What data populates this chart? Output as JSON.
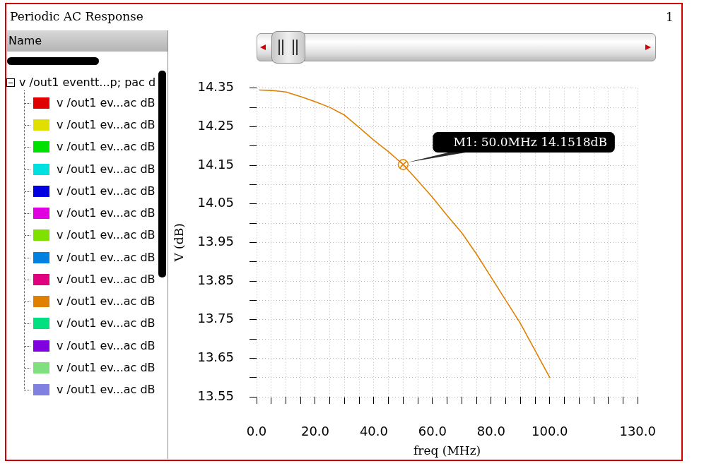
{
  "chart_data": {
    "type": "line",
    "title": "Periodic AC Response",
    "xlabel": "freq (MHz)",
    "ylabel": "V (dB)",
    "legend_title": "v /out1 eventt...p; pac d",
    "legend": "left",
    "grid": true,
    "annotations": [
      "Name",
      "1",
      {
        "text": "M1: 50.0MHz 14.1518dB",
        "x": 50,
        "y": 14.1518
      }
    ],
    "x": [
      1,
      5,
      10,
      15,
      20,
      25,
      30,
      35,
      40,
      45,
      50,
      55,
      60,
      65,
      70,
      75,
      80,
      85,
      90,
      95,
      100
    ],
    "series": [
      {
        "name": "v /out1 ev...ac dB",
        "color": "#e00000",
        "values": [
          null,
          null,
          null,
          null,
          null,
          null,
          null,
          null,
          null,
          null,
          null,
          null,
          null,
          null,
          null,
          null,
          null,
          null,
          null,
          null,
          null
        ]
      },
      {
        "name": "v /out1 ev...ac dB",
        "color": "#e0e000",
        "values": [
          null,
          null,
          null,
          null,
          null,
          null,
          null,
          null,
          null,
          null,
          null,
          null,
          null,
          null,
          null,
          null,
          null,
          null,
          null,
          null,
          null
        ]
      },
      {
        "name": "v /out1 ev...ac dB",
        "color": "#00e000",
        "values": [
          null,
          null,
          null,
          null,
          null,
          null,
          null,
          null,
          null,
          null,
          null,
          null,
          null,
          null,
          null,
          null,
          null,
          null,
          null,
          null,
          null
        ]
      },
      {
        "name": "v /out1 ev...ac dB",
        "color": "#00e0e0",
        "values": [
          null,
          null,
          null,
          null,
          null,
          null,
          null,
          null,
          null,
          null,
          null,
          null,
          null,
          null,
          null,
          null,
          null,
          null,
          null,
          null,
          null
        ]
      },
      {
        "name": "v /out1 ev...ac dB",
        "color": "#0000e0",
        "values": [
          null,
          null,
          null,
          null,
          null,
          null,
          null,
          null,
          null,
          null,
          null,
          null,
          null,
          null,
          null,
          null,
          null,
          null,
          null,
          null,
          null
        ]
      },
      {
        "name": "v /out1 ev...ac dB",
        "color": "#e000e0",
        "values": [
          null,
          null,
          null,
          null,
          null,
          null,
          null,
          null,
          null,
          null,
          null,
          null,
          null,
          null,
          null,
          null,
          null,
          null,
          null,
          null,
          null
        ]
      },
      {
        "name": "v /out1 ev...ac dB",
        "color": "#80e000",
        "values": [
          null,
          null,
          null,
          null,
          null,
          null,
          null,
          null,
          null,
          null,
          null,
          null,
          null,
          null,
          null,
          null,
          null,
          null,
          null,
          null,
          null
        ]
      },
      {
        "name": "v /out1 ev...ac dB",
        "color": "#0080e0",
        "values": [
          null,
          null,
          null,
          null,
          null,
          null,
          null,
          null,
          null,
          null,
          null,
          null,
          null,
          null,
          null,
          null,
          null,
          null,
          null,
          null,
          null
        ]
      },
      {
        "name": "v /out1 ev...ac dB",
        "color": "#e00080",
        "values": [
          null,
          null,
          null,
          null,
          null,
          null,
          null,
          null,
          null,
          null,
          null,
          null,
          null,
          null,
          null,
          null,
          null,
          null,
          null,
          null,
          null
        ]
      },
      {
        "name": "v /out1 ev...ac dB",
        "color": "#e08000",
        "values": [
          14.345,
          14.344,
          14.34,
          14.328,
          14.315,
          14.3,
          14.28,
          14.248,
          14.215,
          14.185,
          14.152,
          14.11,
          14.067,
          14.02,
          13.975,
          13.92,
          13.86,
          13.8,
          13.74,
          13.67,
          13.6
        ]
      },
      {
        "name": "v /out1 ev...ac dB",
        "color": "#00e080",
        "values": [
          null,
          null,
          null,
          null,
          null,
          null,
          null,
          null,
          null,
          null,
          null,
          null,
          null,
          null,
          null,
          null,
          null,
          null,
          null,
          null,
          null
        ]
      },
      {
        "name": "v /out1 ev...ac dB",
        "color": "#8000e0",
        "values": [
          null,
          null,
          null,
          null,
          null,
          null,
          null,
          null,
          null,
          null,
          null,
          null,
          null,
          null,
          null,
          null,
          null,
          null,
          null,
          null,
          null
        ]
      },
      {
        "name": "v /out1 ev...ac dB",
        "color": "#80e080",
        "values": [
          null,
          null,
          null,
          null,
          null,
          null,
          null,
          null,
          null,
          null,
          null,
          null,
          null,
          null,
          null,
          null,
          null,
          null,
          null,
          null,
          null
        ]
      },
      {
        "name": "v /out1 ev...ac dB",
        "color": "#8080e0",
        "values": [
          null,
          null,
          null,
          null,
          null,
          null,
          null,
          null,
          null,
          null,
          null,
          null,
          null,
          null,
          null,
          null,
          null,
          null,
          null,
          null,
          null
        ]
      }
    ],
    "xlim": [
      0,
      130
    ],
    "ylim": [
      13.55,
      14.35
    ],
    "xticks": [
      {
        "value": 0,
        "label": "0.0"
      },
      {
        "value": 5,
        "label": null
      },
      {
        "value": 10,
        "label": null
      },
      {
        "value": 15,
        "label": null
      },
      {
        "value": 20,
        "label": "20.0"
      },
      {
        "value": 25,
        "label": null
      },
      {
        "value": 30,
        "label": null
      },
      {
        "value": 35,
        "label": null
      },
      {
        "value": 40,
        "label": "40.0"
      },
      {
        "value": 45,
        "label": null
      },
      {
        "value": 50,
        "label": null
      },
      {
        "value": 55,
        "label": null
      },
      {
        "value": 60,
        "label": "60.0"
      },
      {
        "value": 65,
        "label": null
      },
      {
        "value": 70,
        "label": null
      },
      {
        "value": 75,
        "label": null
      },
      {
        "value": 80,
        "label": "80.0"
      },
      {
        "value": 85,
        "label": null
      },
      {
        "value": 90,
        "label": null
      },
      {
        "value": 95,
        "label": null
      },
      {
        "value": 100,
        "label": "100.0"
      },
      {
        "value": 105,
        "label": null
      },
      {
        "value": 110,
        "label": null
      },
      {
        "value": 115,
        "label": null
      },
      {
        "value": 120,
        "label": null
      },
      {
        "value": 125,
        "label": null
      },
      {
        "value": 130,
        "label": "130.0"
      }
    ],
    "yticks": [
      13.55,
      {
        "value": 13.6,
        "label": null
      },
      13.65,
      {
        "value": 13.7,
        "label": null
      },
      13.75,
      {
        "value": 13.8,
        "label": null
      },
      13.85,
      {
        "value": 13.9,
        "label": null
      },
      13.95,
      {
        "value": 14.0,
        "label": null
      },
      14.05,
      {
        "value": 14.1,
        "label": null
      },
      14.15,
      {
        "value": 14.2,
        "label": null
      },
      14.25,
      {
        "value": 14.3,
        "label": null
      },
      14.35
    ]
  }
}
